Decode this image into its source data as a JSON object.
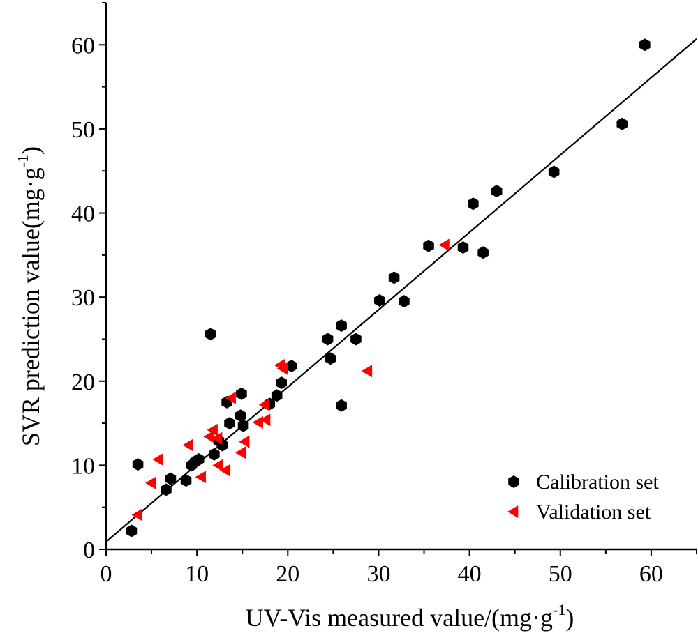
{
  "chart_data": {
    "type": "scatter",
    "title": "",
    "xlabel": "UV-Vis measured value/(mg·g",
    "xlabel_sup": "-1",
    "xlabel_close": ")",
    "ylabel": "SVR prediction value(mg·g",
    "ylabel_sup": "-1",
    "ylabel_close": ")",
    "xlim": [
      0,
      65
    ],
    "ylim": [
      0,
      65
    ],
    "xticks": [
      0,
      10,
      20,
      30,
      40,
      50,
      60
    ],
    "yticks": [
      0,
      10,
      20,
      30,
      40,
      50,
      60
    ],
    "grid": false,
    "legend_position": "bottom-right",
    "fit_line": {
      "intercept": 0.9,
      "slope": 0.92
    },
    "series": [
      {
        "name": "Calibration set",
        "marker": "hexagon",
        "color": "#000000",
        "points": [
          [
            2.8,
            2.2
          ],
          [
            3.5,
            10.1
          ],
          [
            6.6,
            7.1
          ],
          [
            7.1,
            8.4
          ],
          [
            8.8,
            8.2
          ],
          [
            9.4,
            10.0
          ],
          [
            9.8,
            10.4
          ],
          [
            10.2,
            10.7
          ],
          [
            11.5,
            25.6
          ],
          [
            11.9,
            11.3
          ],
          [
            12.4,
            12.9
          ],
          [
            12.8,
            12.4
          ],
          [
            13.3,
            17.5
          ],
          [
            13.6,
            15.0
          ],
          [
            14.8,
            15.9
          ],
          [
            14.9,
            18.5
          ],
          [
            15.1,
            14.7
          ],
          [
            18.0,
            17.3
          ],
          [
            18.8,
            18.3
          ],
          [
            19.3,
            19.8
          ],
          [
            20.4,
            21.8
          ],
          [
            24.4,
            25.0
          ],
          [
            24.7,
            22.7
          ],
          [
            25.9,
            26.6
          ],
          [
            25.9,
            17.1
          ],
          [
            27.5,
            25.0
          ],
          [
            30.1,
            29.6
          ],
          [
            31.7,
            32.3
          ],
          [
            32.8,
            29.5
          ],
          [
            35.5,
            36.1
          ],
          [
            39.3,
            35.9
          ],
          [
            40.4,
            41.1
          ],
          [
            41.5,
            35.3
          ],
          [
            43.0,
            42.6
          ],
          [
            49.3,
            44.9
          ],
          [
            56.8,
            50.6
          ],
          [
            59.3,
            60.0
          ]
        ]
      },
      {
        "name": "Validation set",
        "marker": "left-triangle",
        "color": "#ff0000",
        "points": [
          [
            3.5,
            4.1
          ],
          [
            5.0,
            7.9
          ],
          [
            5.8,
            10.7
          ],
          [
            9.1,
            12.4
          ],
          [
            10.5,
            8.6
          ],
          [
            11.4,
            13.4
          ],
          [
            11.8,
            14.2
          ],
          [
            12.3,
            13.2
          ],
          [
            12.4,
            10.0
          ],
          [
            13.2,
            9.4
          ],
          [
            13.8,
            18.0
          ],
          [
            14.9,
            11.5
          ],
          [
            15.3,
            12.8
          ],
          [
            16.8,
            15.1
          ],
          [
            17.6,
            15.4
          ],
          [
            17.5,
            17.2
          ],
          [
            19.2,
            21.9
          ],
          [
            19.5,
            21.5
          ],
          [
            28.8,
            21.2
          ],
          [
            37.3,
            36.2
          ]
        ]
      }
    ]
  }
}
